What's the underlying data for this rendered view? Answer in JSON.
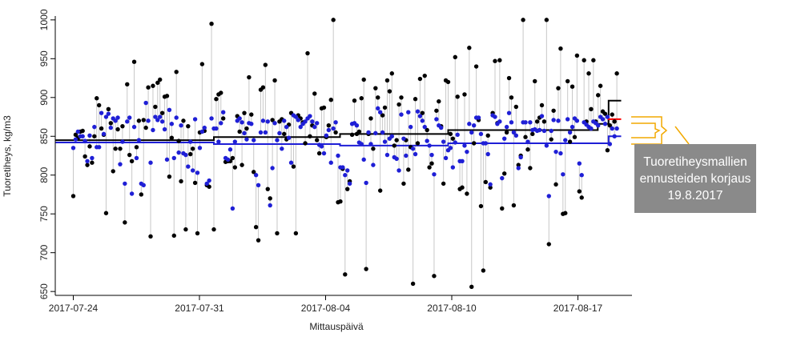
{
  "chart_data": {
    "type": "scatter",
    "xlabel": "Mittauspäivä",
    "ylabel": "Tuoretiheys, kg/m3",
    "x_tick_labels": [
      "2017-07-24",
      "2017-07-31",
      "2017-08-04",
      "2017-08-10",
      "2017-08-17"
    ],
    "x_tick_days": [
      0,
      7,
      14,
      21,
      28
    ],
    "y_ticks": [
      650,
      700,
      750,
      800,
      850,
      900,
      950,
      1000
    ],
    "xlim_days": [
      -1,
      31
    ],
    "ylim": [
      645,
      1005
    ],
    "grid": false,
    "points": [
      [
        0.0,
        773,
        835
      ],
      [
        0.13,
        852,
        846
      ],
      [
        0.26,
        848,
        856
      ],
      [
        0.39,
        856,
        850
      ],
      [
        0.52,
        857,
        850
      ],
      [
        0.65,
        824,
        844
      ],
      [
        0.78,
        813,
        818
      ],
      [
        0.91,
        837,
        851
      ],
      [
        1.04,
        816,
        822
      ],
      [
        1.17,
        850,
        862
      ],
      [
        1.3,
        899,
        836
      ],
      [
        1.43,
        890,
        836
      ],
      [
        1.56,
        860,
        880
      ],
      [
        1.69,
        852,
        853
      ],
      [
        1.82,
        751,
        875
      ],
      [
        1.95,
        885,
        879
      ],
      [
        2.08,
        867,
        861
      ],
      [
        2.21,
        805,
        873
      ],
      [
        2.34,
        834,
        870
      ],
      [
        2.47,
        859,
        874
      ],
      [
        2.6,
        834,
        814
      ],
      [
        2.73,
        863,
        843
      ],
      [
        2.86,
        739,
        789
      ],
      [
        2.99,
        917,
        869
      ],
      [
        3.12,
        826,
        874
      ],
      [
        3.25,
        818,
        776
      ],
      [
        3.38,
        946,
        862
      ],
      [
        3.51,
        836,
        822
      ],
      [
        3.64,
        870,
        845
      ],
      [
        3.77,
        775,
        789
      ],
      [
        3.9,
        871,
        787
      ],
      [
        4.03,
        861,
        893
      ],
      [
        4.16,
        913,
        870
      ],
      [
        4.29,
        721,
        816
      ],
      [
        4.42,
        915,
        858
      ],
      [
        4.55,
        888,
        875
      ],
      [
        4.68,
        919,
        871
      ],
      [
        4.81,
        923,
        875
      ],
      [
        4.94,
        880,
        869
      ],
      [
        5.07,
        901,
        859
      ],
      [
        5.2,
        902,
        820
      ],
      [
        5.33,
        798,
        884
      ],
      [
        5.46,
        848,
        866
      ],
      [
        5.59,
        722,
        822
      ],
      [
        5.72,
        933,
        874
      ],
      [
        5.85,
        844,
        829
      ],
      [
        5.98,
        792,
        864
      ],
      [
        6.11,
        870,
        828
      ],
      [
        6.24,
        730,
        826
      ],
      [
        6.37,
        863,
        811
      ],
      [
        6.5,
        827,
        843
      ],
      [
        6.63,
        834,
        806
      ],
      [
        6.76,
        790,
        872
      ],
      [
        6.89,
        725,
        803
      ],
      [
        7.02,
        855,
        835
      ],
      [
        7.15,
        943,
        856
      ],
      [
        7.28,
        857,
        861
      ],
      [
        7.41,
        787,
        789
      ],
      [
        7.54,
        785,
        793
      ],
      [
        7.67,
        995,
        873
      ],
      [
        7.8,
        730,
        860
      ],
      [
        7.93,
        898,
        860
      ],
      [
        8.06,
        904,
        843
      ],
      [
        8.19,
        906,
        867
      ],
      [
        8.32,
        873,
        881
      ],
      [
        8.45,
        817,
        822
      ],
      [
        8.58,
        818,
        820
      ],
      [
        8.71,
        818,
        833
      ],
      [
        8.84,
        822,
        757
      ],
      [
        8.97,
        810,
        843
      ],
      [
        9.1,
        876,
        870
      ],
      [
        9.23,
        856,
        873
      ],
      [
        9.36,
        813,
        868
      ],
      [
        9.49,
        880,
        854
      ],
      [
        9.62,
        860,
        846
      ],
      [
        9.75,
        926,
        867
      ],
      [
        9.88,
        878,
        866
      ],
      [
        10.01,
        804,
        845
      ],
      [
        10.14,
        733,
        800
      ],
      [
        10.27,
        716,
        787
      ],
      [
        10.4,
        910,
        855
      ],
      [
        10.53,
        913,
        870
      ],
      [
        10.66,
        942,
        855
      ],
      [
        10.79,
        782,
        869
      ],
      [
        10.92,
        770,
        761
      ],
      [
        11.05,
        871,
        809
      ],
      [
        11.18,
        922,
        867
      ],
      [
        11.31,
        725,
        845
      ],
      [
        11.44,
        869,
        854
      ],
      [
        11.57,
        872,
        834
      ],
      [
        11.7,
        853,
        870
      ],
      [
        11.83,
        846,
        862
      ],
      [
        11.96,
        865,
        848
      ],
      [
        12.09,
        880,
        816
      ],
      [
        12.22,
        811,
        877
      ],
      [
        12.35,
        725,
        875
      ],
      [
        12.48,
        877,
        871
      ],
      [
        12.61,
        873,
        862
      ],
      [
        12.74,
        868,
        866
      ],
      [
        12.87,
        841,
        869
      ],
      [
        13.0,
        957,
        873
      ],
      [
        13.13,
        850,
        876
      ],
      [
        13.26,
        864,
        869
      ],
      [
        13.39,
        905,
        862
      ],
      [
        13.52,
        845,
        867
      ],
      [
        13.65,
        828,
        839
      ],
      [
        13.78,
        886,
        837
      ],
      [
        13.91,
        887,
        828
      ],
      [
        14.04,
        849,
        851
      ],
      [
        14.17,
        864,
        858
      ],
      [
        14.3,
        897,
        816
      ],
      [
        14.43,
        1000,
        860
      ],
      [
        14.56,
        855,
        868
      ],
      [
        14.69,
        765,
        825
      ],
      [
        14.82,
        766,
        810
      ],
      [
        14.95,
        808,
        810
      ],
      [
        15.08,
        672,
        800
      ],
      [
        15.21,
        782,
        806
      ],
      [
        15.34,
        792,
        789
      ],
      [
        15.47,
        852,
        866
      ],
      [
        15.6,
        896,
        867
      ],
      [
        15.73,
        853,
        864
      ],
      [
        15.86,
        856,
        842
      ],
      [
        15.99,
        899,
        840
      ],
      [
        16.12,
        923,
        820
      ],
      [
        16.25,
        679,
        790
      ],
      [
        16.38,
        853,
        855
      ],
      [
        16.51,
        873,
        840
      ],
      [
        16.64,
        834,
        813
      ],
      [
        16.77,
        912,
        854
      ],
      [
        16.9,
        900,
        886
      ],
      [
        17.03,
        780,
        881
      ],
      [
        17.16,
        877,
        855
      ],
      [
        17.29,
        887,
        843
      ],
      [
        17.42,
        922,
        826
      ],
      [
        17.55,
        908,
        847
      ],
      [
        17.68,
        931,
        850
      ],
      [
        17.81,
        838,
        823
      ],
      [
        17.94,
        845,
        821
      ],
      [
        18.07,
        891,
        806
      ],
      [
        18.2,
        900,
        878
      ],
      [
        18.33,
        789,
        847
      ],
      [
        18.46,
        845,
        825
      ],
      [
        18.59,
        807,
        881
      ],
      [
        18.72,
        836,
        862
      ],
      [
        18.85,
        660,
        834
      ],
      [
        18.98,
        898,
        827
      ],
      [
        19.11,
        841,
        882
      ],
      [
        19.24,
        924,
        876
      ],
      [
        19.37,
        880,
        870
      ],
      [
        19.5,
        928,
        862
      ],
      [
        19.63,
        858,
        844
      ],
      [
        19.76,
        810,
        838
      ],
      [
        19.89,
        815,
        826
      ],
      [
        20.02,
        670,
        801
      ],
      [
        20.15,
        883,
        872
      ],
      [
        20.28,
        895,
        864
      ],
      [
        20.41,
        863,
        861
      ],
      [
        20.54,
        789,
        843
      ],
      [
        20.67,
        922,
        822
      ],
      [
        20.8,
        920,
        832
      ],
      [
        20.93,
        853,
        835
      ],
      [
        21.06,
        847,
        810
      ],
      [
        21.19,
        952,
        842
      ],
      [
        21.32,
        901,
        852
      ],
      [
        21.45,
        782,
        818
      ],
      [
        21.58,
        784,
        818
      ],
      [
        21.71,
        904,
        838
      ],
      [
        21.84,
        776,
        830
      ],
      [
        21.97,
        964,
        866
      ],
      [
        22.1,
        656,
        855
      ],
      [
        22.23,
        841,
        864
      ],
      [
        22.36,
        940,
        874
      ],
      [
        22.49,
        871,
        874
      ],
      [
        22.62,
        760,
        853
      ],
      [
        22.75,
        677,
        841
      ],
      [
        22.88,
        791,
        841
      ],
      [
        23.01,
        851,
        827
      ],
      [
        23.14,
        784,
        788
      ],
      [
        23.27,
        880,
        877
      ],
      [
        23.4,
        947,
        875
      ],
      [
        23.53,
        867,
        866
      ],
      [
        23.66,
        948,
        869
      ],
      [
        23.79,
        757,
        796
      ],
      [
        23.92,
        802,
        847
      ],
      [
        24.05,
        855,
        862
      ],
      [
        24.18,
        925,
        880
      ],
      [
        24.31,
        900,
        868
      ],
      [
        24.44,
        761,
        855
      ],
      [
        24.57,
        888,
        851
      ],
      [
        24.7,
        813,
        809
      ],
      [
        24.83,
        825,
        823
      ],
      [
        24.96,
        1000,
        868
      ],
      [
        25.09,
        849,
        868
      ],
      [
        25.22,
        833,
        843
      ],
      [
        25.35,
        809,
        868
      ],
      [
        25.48,
        853,
        858
      ],
      [
        25.61,
        921,
        859
      ],
      [
        25.74,
        869,
        857
      ],
      [
        25.87,
        874,
        858
      ],
      [
        26.0,
        890,
        876
      ],
      [
        26.13,
        869,
        857
      ],
      [
        26.26,
        1000,
        838
      ],
      [
        26.39,
        711,
        773
      ],
      [
        26.52,
        846,
        857
      ],
      [
        26.65,
        883,
        871
      ],
      [
        26.78,
        788,
        830
      ],
      [
        26.91,
        912,
        870
      ],
      [
        27.04,
        963,
        828
      ],
      [
        27.17,
        750,
        801
      ],
      [
        27.3,
        751,
        845
      ],
      [
        27.43,
        921,
        872
      ],
      [
        27.56,
        843,
        855
      ],
      [
        27.69,
        914,
        862
      ],
      [
        27.82,
        849,
        873
      ],
      [
        27.95,
        954,
        870
      ],
      [
        28.08,
        779,
        815
      ],
      [
        28.21,
        771,
        800
      ],
      [
        28.34,
        948,
        868
      ],
      [
        28.47,
        869,
        865
      ],
      [
        28.6,
        931,
        862
      ],
      [
        28.73,
        885,
        860
      ],
      [
        28.86,
        948,
        869
      ],
      [
        28.99,
        869,
        867
      ],
      [
        29.12,
        903,
        864
      ],
      [
        29.25,
        915,
        875
      ],
      [
        29.38,
        882,
        872
      ],
      [
        29.51,
        879,
        866
      ],
      [
        29.64,
        832,
        875
      ],
      [
        29.77,
        864,
        840
      ],
      [
        29.9,
        878,
        860
      ],
      [
        30.03,
        869,
        850
      ],
      [
        30.16,
        931,
        860
      ]
    ],
    "series": [
      {
        "name": "",
        "color": "#000000",
        "kind": "points"
      },
      {
        "name": "",
        "color": "#1f1fd6",
        "kind": "points"
      },
      {
        "name": "",
        "color": "#000000",
        "kind": "step",
        "x": [
          -1,
          7.8,
          7.8,
          14.8,
          14.8,
          20.8,
          20.8,
          29.1,
          29.1,
          29.7,
          29.7,
          30.4
        ],
        "y": [
          845,
          845,
          849,
          849,
          853,
          853,
          858,
          858,
          866,
          866,
          896,
          896
        ]
      },
      {
        "name": "",
        "color": "#1f1fd6",
        "kind": "step",
        "x": [
          -1,
          7.8,
          7.8,
          14.8,
          14.8,
          20.8,
          20.8,
          29.7,
          29.7,
          30.4
        ],
        "y": [
          842,
          842,
          840,
          840,
          838,
          838,
          841,
          841,
          850,
          850
        ]
      },
      {
        "name": "",
        "color": "#ff0000",
        "kind": "step",
        "x": [
          29.65,
          30.4
        ],
        "y": [
          872,
          872
        ]
      }
    ],
    "segment_color": "#c8c8c8",
    "bracket_color": "#f2a900",
    "annotation_lines": [
      "Tuoretiheysmallien",
      "ennusteiden korjaus",
      "19.8.2017"
    ]
  }
}
